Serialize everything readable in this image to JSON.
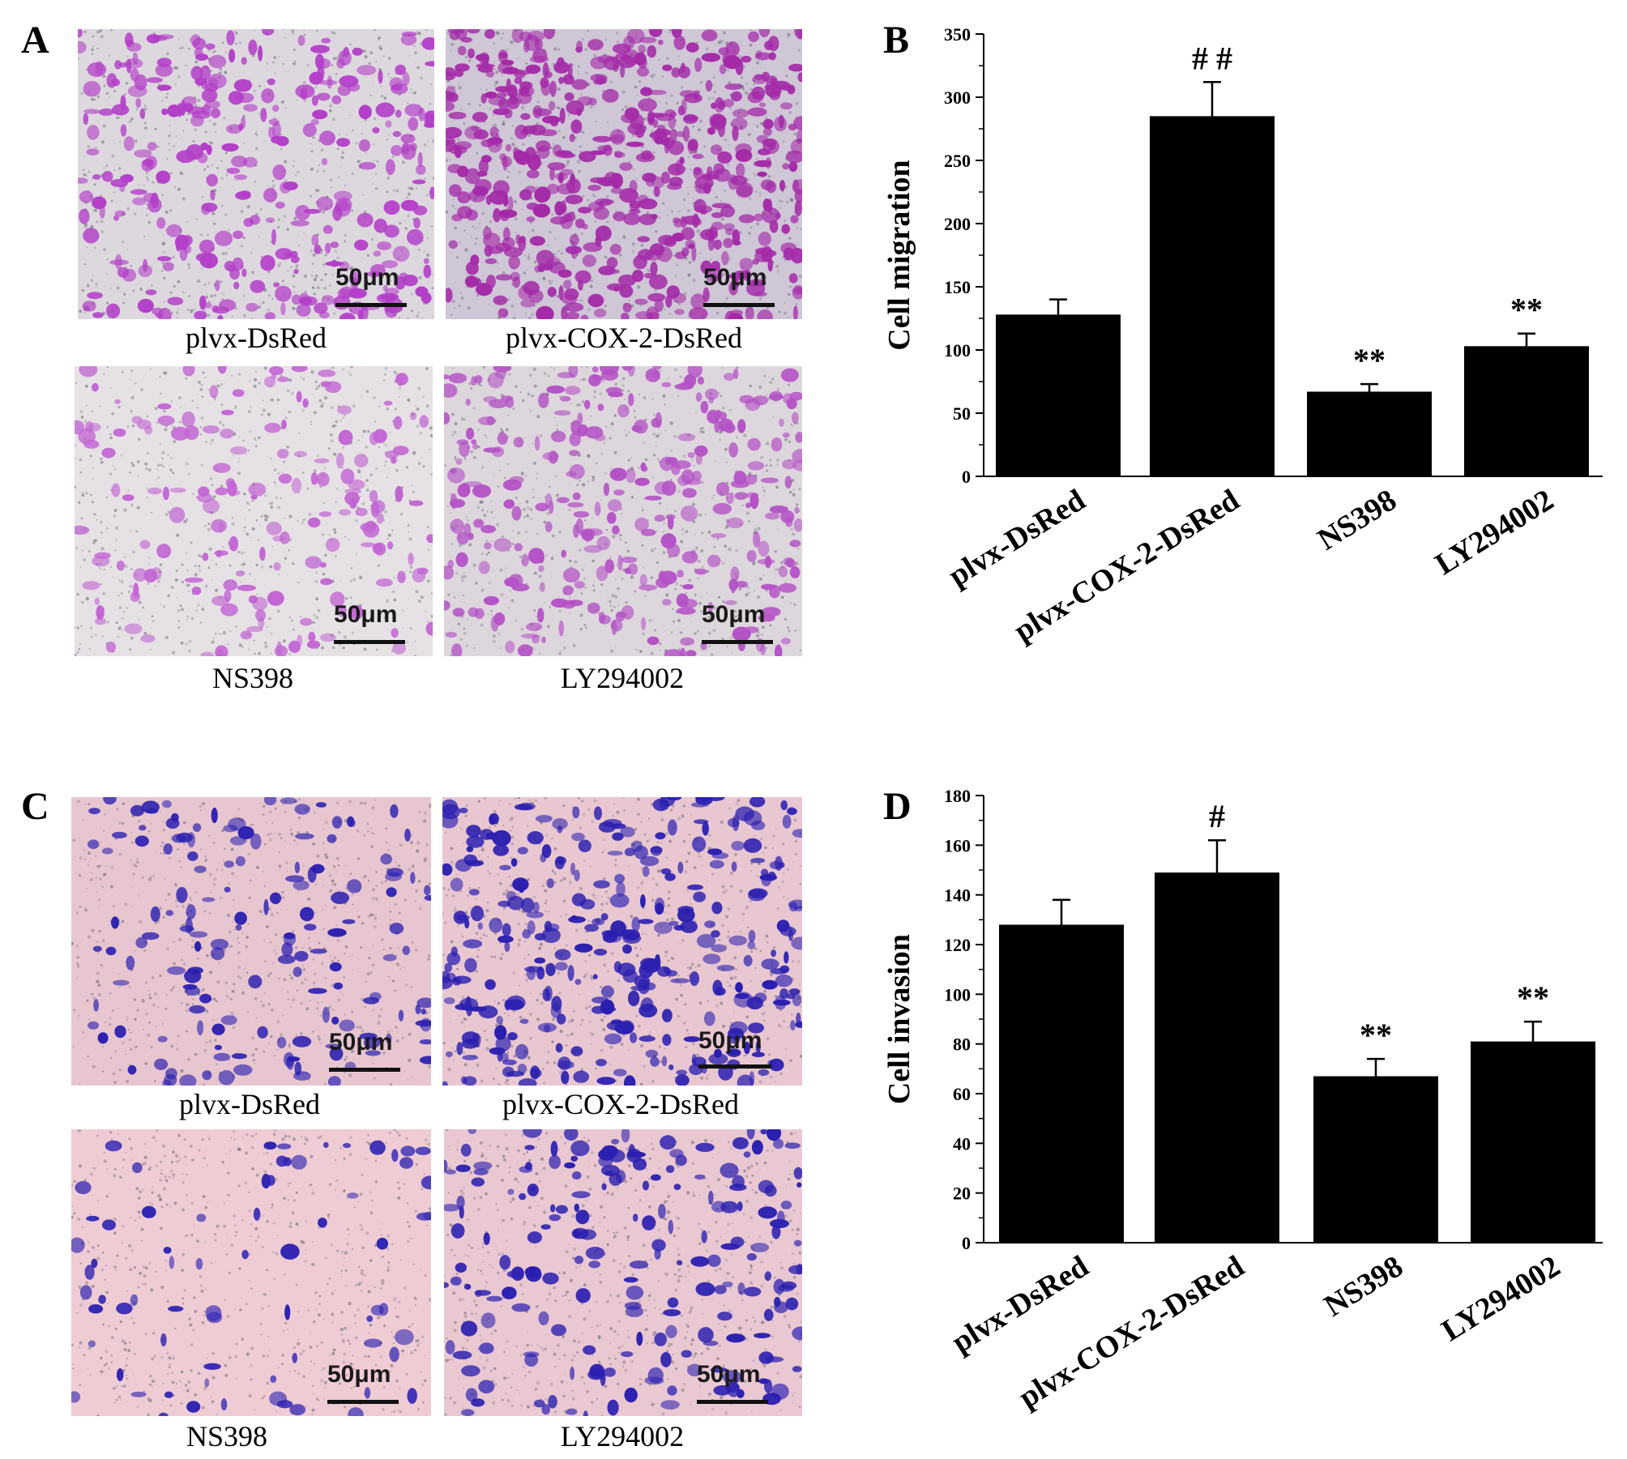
{
  "figure": {
    "panel_a": {
      "letter": "A",
      "images": [
        {
          "caption": "plvx-DsRed",
          "scale": "50μm",
          "stain": "#b33ec8",
          "bg": "#ddd8de",
          "density": 320
        },
        {
          "caption": "plvx-COX-2-DsRed",
          "scale": "50μm",
          "stain": "#a42aa8",
          "bg": "#cfc6d6",
          "density": 560
        },
        {
          "caption": "NS398",
          "scale": "50μm",
          "stain": "#c265d4",
          "bg": "#e6e1e4",
          "density": 170
        },
        {
          "caption": "LY294002",
          "scale": "50μm",
          "stain": "#b452c6",
          "bg": "#ddd6dc",
          "density": 300
        }
      ]
    },
    "panel_c": {
      "letter": "C",
      "images": [
        {
          "caption": "plvx-DsRed",
          "scale": "50μm",
          "stain": "#2a1fb0",
          "bg": "#e8c6d0",
          "density": 150
        },
        {
          "caption": "plvx-COX-2-DsRed",
          "scale": "50μm",
          "stain": "#2a1fb0",
          "bg": "#e9c7d1",
          "density": 330
        },
        {
          "caption": "NS398",
          "scale": "50μm",
          "stain": "#2f24b3",
          "bg": "#efccd4",
          "density": 70
        },
        {
          "caption": "LY294002",
          "scale": "50μm",
          "stain": "#2a1fb0",
          "bg": "#eac8d2",
          "density": 200
        }
      ]
    }
  },
  "chart_data": [
    {
      "panel": "B",
      "type": "bar",
      "categories": [
        "plvx-DsRed",
        "plvx-COX-2-DsRed",
        "NS398",
        "LY294002"
      ],
      "values": [
        128,
        285,
        67,
        103
      ],
      "errors": [
        12,
        27,
        6,
        10
      ],
      "annotations": [
        "",
        "# #",
        "**",
        "**"
      ],
      "ylabel": "Cell migration",
      "ylim": [
        0,
        350
      ],
      "yticks": [
        0,
        50,
        100,
        150,
        200,
        250,
        300,
        350
      ],
      "grid": false,
      "bar_color": "#000000"
    },
    {
      "panel": "D",
      "type": "bar",
      "categories": [
        "plvx-DsRed",
        "plvx-COX-2-DsRed",
        "NS398",
        "LY294002"
      ],
      "values": [
        128,
        149,
        67,
        81
      ],
      "errors": [
        10,
        13,
        7,
        8
      ],
      "annotations": [
        "",
        "#",
        "**",
        "**"
      ],
      "ylabel": "Cell invasion",
      "ylim": [
        0,
        180
      ],
      "yticks": [
        0,
        20,
        40,
        60,
        80,
        100,
        120,
        140,
        160,
        180
      ],
      "grid": false,
      "bar_color": "#000000"
    }
  ]
}
